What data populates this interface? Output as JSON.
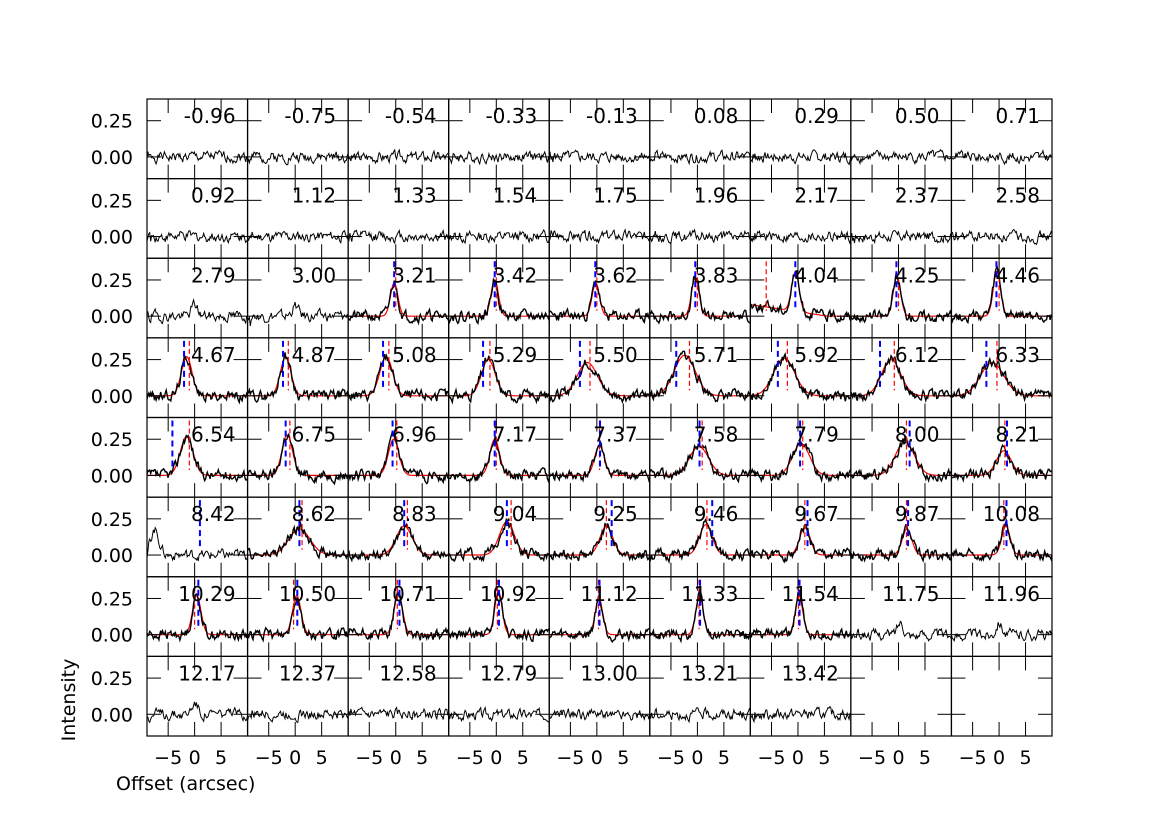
{
  "figure": {
    "ylabel": "Intensity",
    "xlabel": "Offset (arcsec)",
    "colors": {
      "data": "#000000",
      "fit": "#ff0000",
      "fit_marker": "#ff0000",
      "peak_marker": "#0000ff",
      "frame": "#000000"
    }
  },
  "chart_data": {
    "type": "line",
    "layout": "small-multiples",
    "rows": 8,
    "cols": 9,
    "xlim": [
      -9,
      10
    ],
    "ylim": [
      -0.15,
      0.4
    ],
    "xticks": [
      -5,
      0,
      5
    ],
    "xtick_labels": [
      "−5",
      "0",
      "5"
    ],
    "yticks": [
      0.0,
      0.25
    ],
    "ytick_labels": [
      "0.00",
      "0.25"
    ],
    "xlabel": "Offset (arcsec)",
    "ylabel": "Intensity",
    "panels": [
      {
        "label": "-0.96",
        "kind": "noise",
        "seed": 1
      },
      {
        "label": "-0.75",
        "kind": "noise",
        "seed": 2
      },
      {
        "label": "-0.54",
        "kind": "noise",
        "seed": 3
      },
      {
        "label": "-0.33",
        "kind": "noise",
        "seed": 4
      },
      {
        "label": "-0.13",
        "kind": "noise",
        "seed": 5
      },
      {
        "label": "0.08",
        "kind": "noise",
        "seed": 6
      },
      {
        "label": "0.29",
        "kind": "noise",
        "seed": 7
      },
      {
        "label": "0.50",
        "kind": "noise",
        "seed": 8
      },
      {
        "label": "0.71",
        "kind": "noise",
        "seed": 9
      },
      {
        "label": "0.92",
        "kind": "noise",
        "seed": 10
      },
      {
        "label": "1.12",
        "kind": "noise",
        "seed": 11
      },
      {
        "label": "1.33",
        "kind": "noise",
        "seed": 12
      },
      {
        "label": "1.54",
        "kind": "noise",
        "seed": 13
      },
      {
        "label": "1.75",
        "kind": "noise",
        "seed": 14
      },
      {
        "label": "1.96",
        "kind": "noise",
        "seed": 15
      },
      {
        "label": "2.17",
        "kind": "noise",
        "seed": 16
      },
      {
        "label": "2.37",
        "kind": "noise",
        "seed": 17
      },
      {
        "label": "2.58",
        "kind": "noise",
        "seed": 18
      },
      {
        "label": "2.79",
        "kind": "noise",
        "seed": 19,
        "peak": 0.0,
        "height": 0.08
      },
      {
        "label": "3.00",
        "kind": "noise",
        "seed": 20,
        "peak": 0.0,
        "height": 0.07
      },
      {
        "label": "3.21",
        "kind": "fit",
        "seed": 21,
        "peak": -0.3,
        "height": 0.23,
        "width": 0.7,
        "red": 0.0,
        "blue": -0.3
      },
      {
        "label": "3.42",
        "kind": "fit",
        "seed": 22,
        "peak": -0.3,
        "height": 0.25,
        "width": 0.7,
        "red": 0.0,
        "blue": -0.3
      },
      {
        "label": "3.62",
        "kind": "fit",
        "seed": 23,
        "peak": -0.2,
        "height": 0.23,
        "width": 0.7,
        "red": 0.0,
        "blue": -0.3
      },
      {
        "label": "3.83",
        "kind": "fit",
        "seed": 24,
        "peak": -0.4,
        "height": 0.27,
        "width": 0.7,
        "red": 0.0,
        "blue": -0.4
      },
      {
        "label": "4.04",
        "kind": "fit",
        "seed": 25,
        "peak": -0.5,
        "height": 0.27,
        "width": 0.7,
        "red": -6.0,
        "blue": -0.5,
        "slope": 0.08
      },
      {
        "label": "4.25",
        "kind": "fit",
        "seed": 26,
        "peak": -0.3,
        "height": 0.27,
        "width": 0.7,
        "red": 0.0,
        "blue": -0.4
      },
      {
        "label": "4.46",
        "kind": "fit",
        "seed": 27,
        "peak": -0.4,
        "height": 0.31,
        "width": 0.7,
        "red": 0.0,
        "blue": -0.5
      },
      {
        "label": "4.67",
        "kind": "fit",
        "seed": 28,
        "peak": -1.5,
        "height": 0.27,
        "width": 1.0,
        "red": -1.0,
        "blue": -2.0
      },
      {
        "label": "4.87",
        "kind": "fit",
        "seed": 29,
        "peak": -1.8,
        "height": 0.27,
        "width": 1.0,
        "red": -1.3,
        "blue": -2.3
      },
      {
        "label": "5.08",
        "kind": "fit",
        "seed": 30,
        "peak": -1.8,
        "height": 0.27,
        "width": 1.2,
        "red": -1.3,
        "blue": -2.4
      },
      {
        "label": "5.29",
        "kind": "fit",
        "seed": 31,
        "peak": -1.5,
        "height": 0.25,
        "width": 1.3,
        "red": -1.2,
        "blue": -2.5
      },
      {
        "label": "5.50",
        "kind": "fit",
        "seed": 32,
        "peak": -1.8,
        "height": 0.23,
        "width": 1.9,
        "red": -1.3,
        "blue": -3.2
      },
      {
        "label": "5.71",
        "kind": "fit",
        "seed": 33,
        "peak": -2.4,
        "height": 0.28,
        "width": 2.0,
        "red": -1.5,
        "blue": -4.0
      },
      {
        "label": "5.92",
        "kind": "fit",
        "seed": 34,
        "peak": -2.6,
        "height": 0.26,
        "width": 2.0,
        "red": -2.0,
        "blue": -3.8
      },
      {
        "label": "6.12",
        "kind": "fit",
        "seed": 35,
        "peak": -1.4,
        "height": 0.25,
        "width": 1.8,
        "red": -0.8,
        "blue": -3.5
      },
      {
        "label": "6.33",
        "kind": "fit",
        "seed": 36,
        "peak": -1.3,
        "height": 0.23,
        "width": 2.2,
        "red": -0.4,
        "blue": -2.4
      },
      {
        "label": "6.54",
        "kind": "fit",
        "seed": 37,
        "peak": -1.5,
        "height": 0.27,
        "width": 1.2,
        "red": -1.0,
        "blue": -4.2
      },
      {
        "label": "6.75",
        "kind": "fit",
        "seed": 38,
        "peak": -1.5,
        "height": 0.28,
        "width": 1.0,
        "red": -1.0,
        "blue": -1.8
      },
      {
        "label": "6.96",
        "kind": "fit",
        "seed": 39,
        "peak": -0.4,
        "height": 0.25,
        "width": 1.0,
        "red": 0.2,
        "blue": -0.6
      },
      {
        "label": "7.17",
        "kind": "fit",
        "seed": 40,
        "peak": -0.3,
        "height": 0.25,
        "width": 0.9,
        "red": 0.0,
        "blue": -0.3
      },
      {
        "label": "7.37",
        "kind": "fit",
        "seed": 41,
        "peak": 0.5,
        "height": 0.21,
        "width": 0.9,
        "red": 0.5,
        "blue": 0.6
      },
      {
        "label": "7.58",
        "kind": "fit",
        "seed": 42,
        "peak": 0.3,
        "height": 0.2,
        "width": 1.8,
        "red": 0.9,
        "blue": 0.4
      },
      {
        "label": "7.79",
        "kind": "fit",
        "seed": 43,
        "peak": 0.6,
        "height": 0.22,
        "width": 1.6,
        "red": 0.9,
        "blue": 0.4
      },
      {
        "label": "8.00",
        "kind": "fit",
        "seed": 44,
        "peak": 1.2,
        "height": 0.23,
        "width": 1.8,
        "red": 1.5,
        "blue": 2.1
      },
      {
        "label": "8.21",
        "kind": "fit",
        "seed": 45,
        "peak": 0.9,
        "height": 0.17,
        "width": 1.4,
        "red": 1.1,
        "blue": 1.5
      },
      {
        "label": "8.42",
        "kind": "noise",
        "seed": 46,
        "spike": -7.5,
        "spike_h": 0.17,
        "blue_marker": 1.0
      },
      {
        "label": "8.62",
        "kind": "fit",
        "seed": 47,
        "peak": 0.8,
        "height": 0.18,
        "width": 2.0,
        "red": 1.3,
        "blue": 0.8
      },
      {
        "label": "8.83",
        "kind": "fit",
        "seed": 48,
        "peak": 1.6,
        "height": 0.2,
        "width": 1.5,
        "red": 2.2,
        "blue": 1.6
      },
      {
        "label": "9.04",
        "kind": "fit",
        "seed": 49,
        "peak": 2.0,
        "height": 0.23,
        "width": 1.4,
        "red": 2.8,
        "blue": 2.0
      },
      {
        "label": "9.25",
        "kind": "fit",
        "seed": 50,
        "peak": 1.8,
        "height": 0.2,
        "width": 1.2,
        "red": 1.8,
        "blue": 2.8
      },
      {
        "label": "9.46",
        "kind": "fit",
        "seed": 51,
        "peak": 1.6,
        "height": 0.21,
        "width": 1.2,
        "red": 1.8,
        "blue": 2.8
      },
      {
        "label": "9.67",
        "kind": "fit",
        "seed": 52,
        "peak": 1.3,
        "height": 0.19,
        "width": 1.0,
        "red": 1.3,
        "blue": 1.8
      },
      {
        "label": "9.87",
        "kind": "fit",
        "seed": 53,
        "peak": 1.6,
        "height": 0.18,
        "width": 0.9,
        "red": 1.5,
        "blue": 1.8
      },
      {
        "label": "10.08",
        "kind": "fit",
        "seed": 54,
        "peak": 1.3,
        "height": 0.2,
        "width": 0.8,
        "red": 0.9,
        "blue": 1.4
      },
      {
        "label": "10.29",
        "kind": "fit",
        "seed": 55,
        "peak": 0.4,
        "height": 0.27,
        "width": 0.8,
        "red": 0.0,
        "blue": 0.7
      },
      {
        "label": "10.50",
        "kind": "fit",
        "seed": 56,
        "peak": 0.3,
        "height": 0.27,
        "width": 0.8,
        "red": -0.3,
        "blue": 0.4
      },
      {
        "label": "10.71",
        "kind": "fit",
        "seed": 57,
        "peak": 0.5,
        "height": 0.28,
        "width": 0.8,
        "red": 0.3,
        "blue": 0.7
      },
      {
        "label": "10.92",
        "kind": "fit",
        "seed": 58,
        "peak": 0.4,
        "height": 0.3,
        "width": 0.7,
        "red": 0.2,
        "blue": 0.5
      },
      {
        "label": "11.12",
        "kind": "fit",
        "seed": 59,
        "peak": 0.4,
        "height": 0.25,
        "width": 0.7,
        "red": 0.3,
        "blue": 0.5
      },
      {
        "label": "11.33",
        "kind": "fit",
        "seed": 60,
        "peak": 0.4,
        "height": 0.27,
        "width": 0.7,
        "red": 0.3,
        "blue": 0.5
      },
      {
        "label": "11.54",
        "kind": "fit",
        "seed": 61,
        "peak": 0.2,
        "height": 0.27,
        "width": 0.7,
        "red": 0.1,
        "blue": 0.3
      },
      {
        "label": "11.75",
        "kind": "noise",
        "seed": 62,
        "peak": 0.4,
        "height": 0.09
      },
      {
        "label": "11.96",
        "kind": "noise",
        "seed": 63,
        "peak": 0.0,
        "height": 0.09
      },
      {
        "label": "12.17",
        "kind": "noise",
        "seed": 64,
        "peak": 0.0,
        "height": 0.08
      },
      {
        "label": "12.37",
        "kind": "noise",
        "seed": 65
      },
      {
        "label": "12.58",
        "kind": "noise",
        "seed": 66
      },
      {
        "label": "12.79",
        "kind": "noise",
        "seed": 67
      },
      {
        "label": "13.00",
        "kind": "noise",
        "seed": 68
      },
      {
        "label": "13.21",
        "kind": "noise",
        "seed": 69
      },
      {
        "label": "13.42",
        "kind": "noise",
        "seed": 70
      },
      {
        "label": "",
        "kind": "empty"
      },
      {
        "label": "",
        "kind": "empty"
      }
    ]
  }
}
